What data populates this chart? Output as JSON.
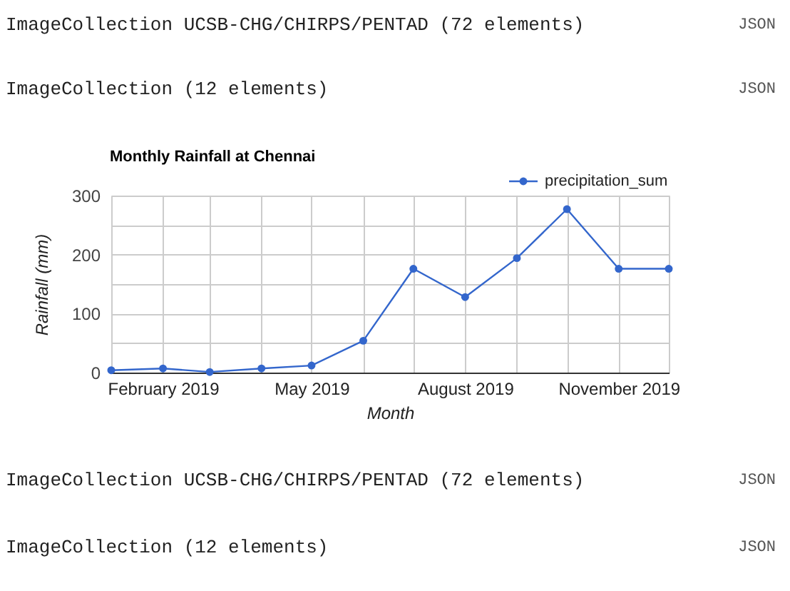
{
  "chart_data": {
    "type": "line",
    "title": "Monthly Rainfall at Chennai",
    "xlabel": "Month",
    "ylabel": "Rainfall (mm)",
    "x": [
      "2019-01-01",
      "2019-02-01",
      "2019-03-01",
      "2019-04-01",
      "2019-05-01",
      "2019-06-01",
      "2019-07-01",
      "2019-08-01",
      "2019-09-01",
      "2019-10-01",
      "2019-11-01",
      "2019-12-01"
    ],
    "series": [
      {
        "name": "precipitation_sum",
        "color": "#3366cc",
        "values": [
          4,
          7,
          1,
          7,
          12,
          54,
          176,
          128,
          194,
          277,
          176,
          176
        ]
      }
    ],
    "xlim": [
      "2019-01-01",
      "2019-12-01"
    ],
    "xticks": [
      {
        "value": "2019-01-01",
        "label": null
      },
      {
        "value": "2019-02-01",
        "label": "February 2019"
      },
      {
        "value": "2019-03-01",
        "label": null
      },
      {
        "value": "2019-04-01",
        "label": null
      },
      {
        "value": "2019-05-01",
        "label": "May 2019"
      },
      {
        "value": "2019-06-01",
        "label": null
      },
      {
        "value": "2019-07-01",
        "label": null
      },
      {
        "value": "2019-08-01",
        "label": "August 2019"
      },
      {
        "value": "2019-09-01",
        "label": null
      },
      {
        "value": "2019-10-01",
        "label": null
      },
      {
        "value": "2019-11-01",
        "label": "November 2019"
      },
      {
        "value": "2019-12-01",
        "label": null
      }
    ],
    "ylim": [
      0,
      300
    ],
    "yticks": [
      0,
      {
        "value": 50,
        "label": null
      },
      100,
      {
        "value": 150,
        "label": null
      },
      200,
      {
        "value": 250,
        "label": null
      },
      300
    ],
    "grid": true,
    "legend": "top right",
    "marker": "circle",
    "line_style": "solid",
    "annotations": [
      "ImageCollection UCSB-CHG/CHIRPS/PENTAD (72 elements)",
      "JSON",
      "ImageCollection (12 elements)",
      "JSON",
      "ImageCollection UCSB-CHG/CHIRPS/PENTAD (72 elements)",
      "JSON",
      "ImageCollection (12 elements)",
      "JSON"
    ]
  }
}
